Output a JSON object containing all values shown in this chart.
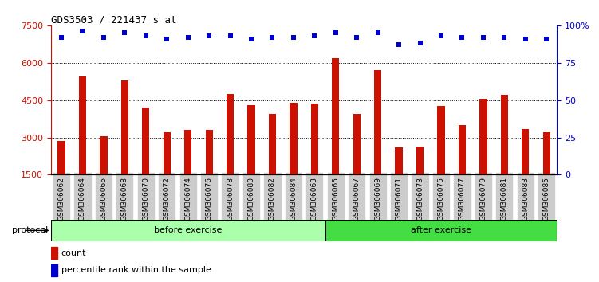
{
  "title": "GDS3503 / 221437_s_at",
  "categories": [
    "GSM306062",
    "GSM306064",
    "GSM306066",
    "GSM306068",
    "GSM306070",
    "GSM306072",
    "GSM306074",
    "GSM306076",
    "GSM306078",
    "GSM306080",
    "GSM306082",
    "GSM306084",
    "GSM306063",
    "GSM306065",
    "GSM306067",
    "GSM306069",
    "GSM306071",
    "GSM306073",
    "GSM306075",
    "GSM306077",
    "GSM306079",
    "GSM306081",
    "GSM306083",
    "GSM306085"
  ],
  "bar_values": [
    2850,
    5450,
    3050,
    5300,
    4200,
    3200,
    3300,
    3300,
    4750,
    4300,
    3950,
    4400,
    4350,
    6200,
    3950,
    5700,
    2600,
    2650,
    4250,
    3500,
    4550,
    4700,
    3350,
    3200
  ],
  "percentile_values": [
    92,
    96,
    92,
    95,
    93,
    91,
    92,
    93,
    93,
    91,
    92,
    92,
    93,
    95,
    92,
    95,
    87,
    88,
    93,
    92,
    92,
    92,
    91,
    91
  ],
  "before_count": 13,
  "after_count": 11,
  "bar_color": "#cc1100",
  "dot_color": "#0000cc",
  "ylim_left": [
    1500,
    7500
  ],
  "ylim_right": [
    0,
    100
  ],
  "yticks_left": [
    1500,
    3000,
    4500,
    6000,
    7500
  ],
  "yticks_right": [
    0,
    25,
    50,
    75,
    100
  ],
  "grid_values": [
    3000,
    4500,
    6000
  ],
  "before_label": "before exercise",
  "after_label": "after exercise",
  "before_color": "#aaffaa",
  "after_color": "#44dd44",
  "protocol_label": "protocol",
  "legend_count": "count",
  "legend_percentile": "percentile rank within the sample",
  "tick_bg_color": "#cccccc",
  "bar_width": 0.35
}
